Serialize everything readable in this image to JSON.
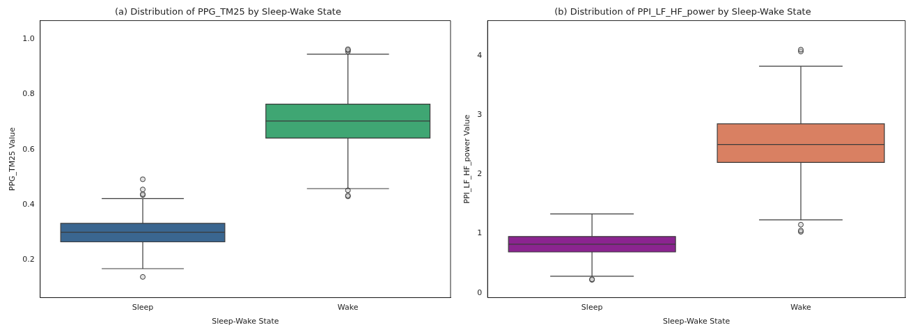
{
  "chart_data": [
    {
      "type": "box",
      "title": "(a) Distribution of PPG_TM25 by Sleep-Wake State",
      "xlabel": "Sleep-Wake State",
      "ylabel": "PPG_TM25 Value",
      "categories": [
        "Sleep",
        "Wake"
      ],
      "colors": [
        "#3a6690",
        "#3fa673"
      ],
      "ylim": [
        0.063,
        1.067
      ],
      "yticks": [
        {
          "value": 0.2,
          "label": "0.2"
        },
        {
          "value": 0.4,
          "label": "0.4"
        },
        {
          "value": 0.6,
          "label": "0.6"
        },
        {
          "value": 0.8,
          "label": "0.8"
        },
        {
          "value": 1.0,
          "label": "1.0"
        }
      ],
      "grid": false,
      "legend": false,
      "boxes": [
        {
          "low": 0.168,
          "q1": 0.265,
          "median": 0.3,
          "q3": 0.332,
          "high": 0.422,
          "outliers": [
            0.138,
            0.435,
            0.438,
            0.455,
            0.492
          ]
        },
        {
          "low": 0.458,
          "q1": 0.641,
          "median": 0.703,
          "q3": 0.764,
          "high": 0.945,
          "outliers": [
            0.43,
            0.433,
            0.452,
            0.955,
            0.96,
            0.963
          ]
        }
      ]
    },
    {
      "type": "box",
      "title": "(b) Distribution of PPI_LF_HF_power by Sleep-Wake State",
      "xlabel": "Sleep-Wake State",
      "ylabel": "PPI_LF_HF_power Value",
      "categories": [
        "Sleep",
        "Wake"
      ],
      "colors": [
        "#8b2490",
        "#d98062"
      ],
      "ylim": [
        -0.08,
        4.59
      ],
      "yticks": [
        0,
        1,
        2,
        3,
        4
      ],
      "grid": false,
      "legend": false,
      "boxes": [
        {
          "low": 0.28,
          "q1": 0.69,
          "median": 0.82,
          "q3": 0.95,
          "high": 1.33,
          "outliers": [
            0.22,
            0.23
          ]
        },
        {
          "low": 1.23,
          "q1": 2.2,
          "median": 2.5,
          "q3": 2.85,
          "high": 3.82,
          "outliers": [
            1.03,
            1.05,
            1.15,
            4.07,
            4.1
          ]
        }
      ]
    }
  ]
}
